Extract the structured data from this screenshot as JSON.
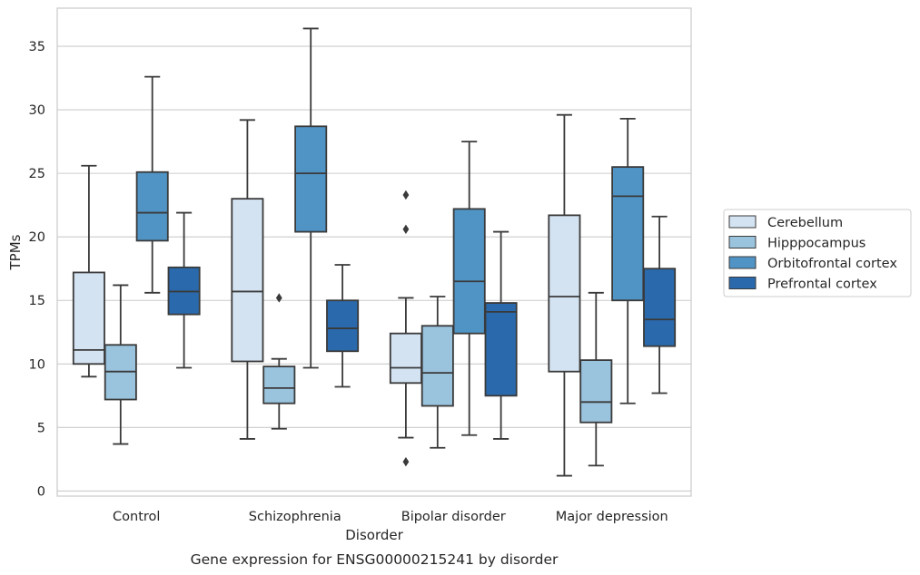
{
  "chart_data": {
    "type": "box",
    "xlabel": "Disorder",
    "ylabel": "TPMs",
    "caption": "Gene expression for ENSG00000215241 by disorder",
    "categories": [
      "Control",
      "Schizophrenia",
      "Bipolar disorder",
      "Major depression"
    ],
    "ylim": [
      -0.4,
      38
    ],
    "yticks": [
      0,
      5,
      10,
      15,
      20,
      25,
      30,
      35
    ],
    "grid": "horizontal",
    "legend_position": "right",
    "series": [
      {
        "name": "Cerebellum",
        "color": "#d4e3f2",
        "boxes": [
          {
            "whisker_low": 9.0,
            "q1": 10.0,
            "median": 11.1,
            "q3": 17.2,
            "whisker_high": 25.6,
            "outliers": []
          },
          {
            "whisker_low": 4.1,
            "q1": 10.2,
            "median": 15.7,
            "q3": 23.0,
            "whisker_high": 29.2,
            "outliers": []
          },
          {
            "whisker_low": 4.2,
            "q1": 8.5,
            "median": 9.7,
            "q3": 12.4,
            "whisker_high": 15.2,
            "outliers": [
              2.3,
              20.6,
              23.3
            ]
          },
          {
            "whisker_low": 1.2,
            "q1": 9.4,
            "median": 15.3,
            "q3": 21.7,
            "whisker_high": 29.6,
            "outliers": []
          }
        ]
      },
      {
        "name": "Hipppocampus",
        "color": "#9ac3dd",
        "boxes": [
          {
            "whisker_low": 3.7,
            "q1": 7.2,
            "median": 9.4,
            "q3": 11.5,
            "whisker_high": 16.2,
            "outliers": []
          },
          {
            "whisker_low": 4.9,
            "q1": 6.9,
            "median": 8.1,
            "q3": 9.8,
            "whisker_high": 10.4,
            "outliers": [
              15.2
            ]
          },
          {
            "whisker_low": 3.4,
            "q1": 6.7,
            "median": 9.3,
            "q3": 13.0,
            "whisker_high": 15.3,
            "outliers": []
          },
          {
            "whisker_low": 2.0,
            "q1": 5.4,
            "median": 7.0,
            "q3": 10.3,
            "whisker_high": 15.6,
            "outliers": []
          }
        ]
      },
      {
        "name": "Orbitofrontal cortex",
        "color": "#5094c5",
        "boxes": [
          {
            "whisker_low": 15.6,
            "q1": 19.7,
            "median": 21.9,
            "q3": 25.1,
            "whisker_high": 32.6,
            "outliers": []
          },
          {
            "whisker_low": 9.7,
            "q1": 20.4,
            "median": 25.0,
            "q3": 28.7,
            "whisker_high": 36.4,
            "outliers": []
          },
          {
            "whisker_low": 4.4,
            "q1": 12.4,
            "median": 16.5,
            "q3": 22.2,
            "whisker_high": 27.5,
            "outliers": []
          },
          {
            "whisker_low": 6.9,
            "q1": 15.0,
            "median": 23.2,
            "q3": 25.5,
            "whisker_high": 29.3,
            "outliers": []
          }
        ]
      },
      {
        "name": "Prefrontal cortex",
        "color": "#2a6aac",
        "boxes": [
          {
            "whisker_low": 9.7,
            "q1": 13.9,
            "median": 15.7,
            "q3": 17.6,
            "whisker_high": 21.9,
            "outliers": []
          },
          {
            "whisker_low": 8.2,
            "q1": 11.0,
            "median": 12.8,
            "q3": 15.0,
            "whisker_high": 17.8,
            "outliers": []
          },
          {
            "whisker_low": 4.1,
            "q1": 7.5,
            "median": 14.1,
            "q3": 14.8,
            "whisker_high": 20.4,
            "outliers": []
          },
          {
            "whisker_low": 7.7,
            "q1": 11.4,
            "median": 13.5,
            "q3": 17.5,
            "whisker_high": 21.6,
            "outliers": []
          }
        ]
      }
    ]
  }
}
